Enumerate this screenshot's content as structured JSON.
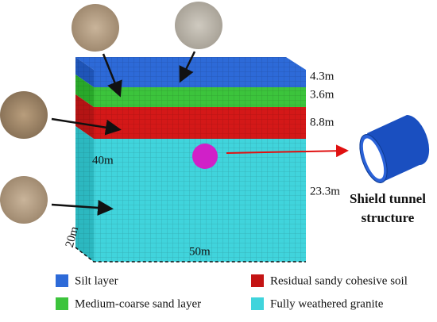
{
  "layers": [
    {
      "thickness": "4.3m",
      "legend": "Silt layer"
    },
    {
      "thickness": "3.6m",
      "legend": "Medium-coarse sand layer"
    },
    {
      "thickness": "8.8m",
      "legend": "Residual sandy cohesive soil"
    },
    {
      "thickness": "23.3m",
      "legend": "Fully weathered granite"
    }
  ],
  "dimensions": {
    "height": "40m",
    "length": "50m",
    "width": "20m"
  },
  "tunnel_label": [
    "Shield tunnel",
    "structure"
  ]
}
